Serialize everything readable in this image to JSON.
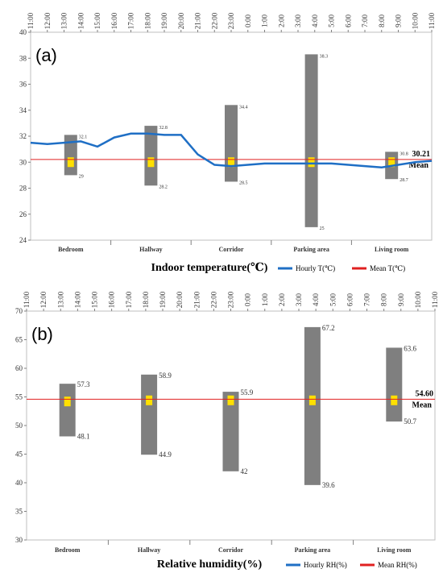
{
  "chart_data": [
    {
      "type": "box",
      "panel_label": "(a)",
      "title": "Indoor temperature(℃)",
      "ylim": [
        24,
        40
      ],
      "yticks": [
        24,
        26,
        28,
        30,
        32,
        34,
        36,
        38,
        40
      ],
      "categories": [
        "Bedroom",
        "Hallway",
        "Corridor",
        "Parking area",
        "Living room"
      ],
      "top_time_ticks": [
        "11:00",
        "12:00",
        "13:00",
        "14:00",
        "15:00",
        "16:00",
        "17:00",
        "18:00",
        "19:00",
        "20:00",
        "21:00",
        "22:00",
        "23:00",
        "0:00",
        "1:00",
        "2:00",
        "3:00",
        "4:00",
        "5:00",
        "6:00",
        "7:00",
        "8:00",
        "9:00",
        "10:00",
        "11:00"
      ],
      "ranges": [
        {
          "category": "Bedroom",
          "max": 32.1,
          "min": 29,
          "max_label": "32.1",
          "min_label": "29",
          "mean": 30.0
        },
        {
          "category": "Hallway",
          "max": 32.8,
          "min": 28.2,
          "max_label": "32.8",
          "min_label": "28.2",
          "mean": 30.0
        },
        {
          "category": "Corridor",
          "max": 34.4,
          "min": 28.5,
          "max_label": "34.4",
          "min_label": "28.5",
          "mean": 30.0
        },
        {
          "category": "Parking area",
          "max": 38.3,
          "min": 25,
          "max_label": "38.3",
          "min_label": "25",
          "mean": 30.0
        },
        {
          "category": "Living room",
          "max": 30.8,
          "min": 28.7,
          "max_label": "30.8",
          "min_label": "28.7",
          "mean": 30.0
        }
      ],
      "mean_value": 30.21,
      "mean_value_label": "30.21",
      "mean_text": "Mean",
      "hourly_series": [
        31.5,
        31.4,
        31.5,
        31.6,
        31.2,
        31.9,
        32.2,
        32.2,
        32.1,
        32.1,
        30.6,
        29.8,
        29.7,
        29.8,
        29.9,
        29.9,
        29.9,
        29.9,
        29.9,
        29.8,
        29.7,
        29.6,
        29.8,
        30.0,
        30.1
      ],
      "legend": [
        "Hourly T(℃)",
        "Mean T(℃)"
      ],
      "colors": {
        "hourly": "#1f6fc5",
        "mean": "#e02020",
        "bar": "#7f7f7f",
        "marker": "#ffe000"
      }
    },
    {
      "type": "box",
      "panel_label": "(b)",
      "title": "Relative humidity(%)",
      "ylim": [
        30,
        70
      ],
      "yticks": [
        30,
        35,
        40,
        45,
        50,
        55,
        60,
        65,
        70
      ],
      "categories": [
        "Bedroom",
        "Hallway",
        "Corridor",
        "Parking area",
        "Living room"
      ],
      "top_time_ticks": [
        "11:00",
        "12:00",
        "13:00",
        "14:00",
        "15:00",
        "16:00",
        "17:00",
        "18:00",
        "19:00",
        "20:00",
        "21:00",
        "22:00",
        "23:00",
        "0:00",
        "1:00",
        "2:00",
        "3:00",
        "4:00",
        "5:00",
        "6:00",
        "7:00",
        "8:00",
        "9:00",
        "10:00",
        "11:00"
      ],
      "ranges": [
        {
          "category": "Bedroom",
          "max": 57.3,
          "min": 48.1,
          "max_label": "57.3",
          "min_label": "48.1",
          "mean": 54.2
        },
        {
          "category": "Hallway",
          "max": 58.9,
          "min": 44.9,
          "max_label": "58.9",
          "min_label": "44.9",
          "mean": 54.4
        },
        {
          "category": "Corridor",
          "max": 55.9,
          "min": 42,
          "max_label": "55.9",
          "min_label": "42",
          "mean": 54.4
        },
        {
          "category": "Parking area",
          "max": 67.2,
          "min": 39.6,
          "max_label": "67.2",
          "min_label": "39.6",
          "mean": 54.4
        },
        {
          "category": "Living room",
          "max": 63.6,
          "min": 50.7,
          "max_label": "63.6",
          "min_label": "50.7",
          "mean": 54.4
        }
      ],
      "mean_value": 54.6,
      "mean_value_label": "54.60",
      "mean_text": "Mean",
      "legend": [
        "Hourly RH(%)",
        "Mean RH(%)"
      ],
      "colors": {
        "hourly": "#1f6fc5",
        "mean": "#e02020",
        "bar": "#7f7f7f",
        "marker": "#ffe000"
      }
    }
  ]
}
